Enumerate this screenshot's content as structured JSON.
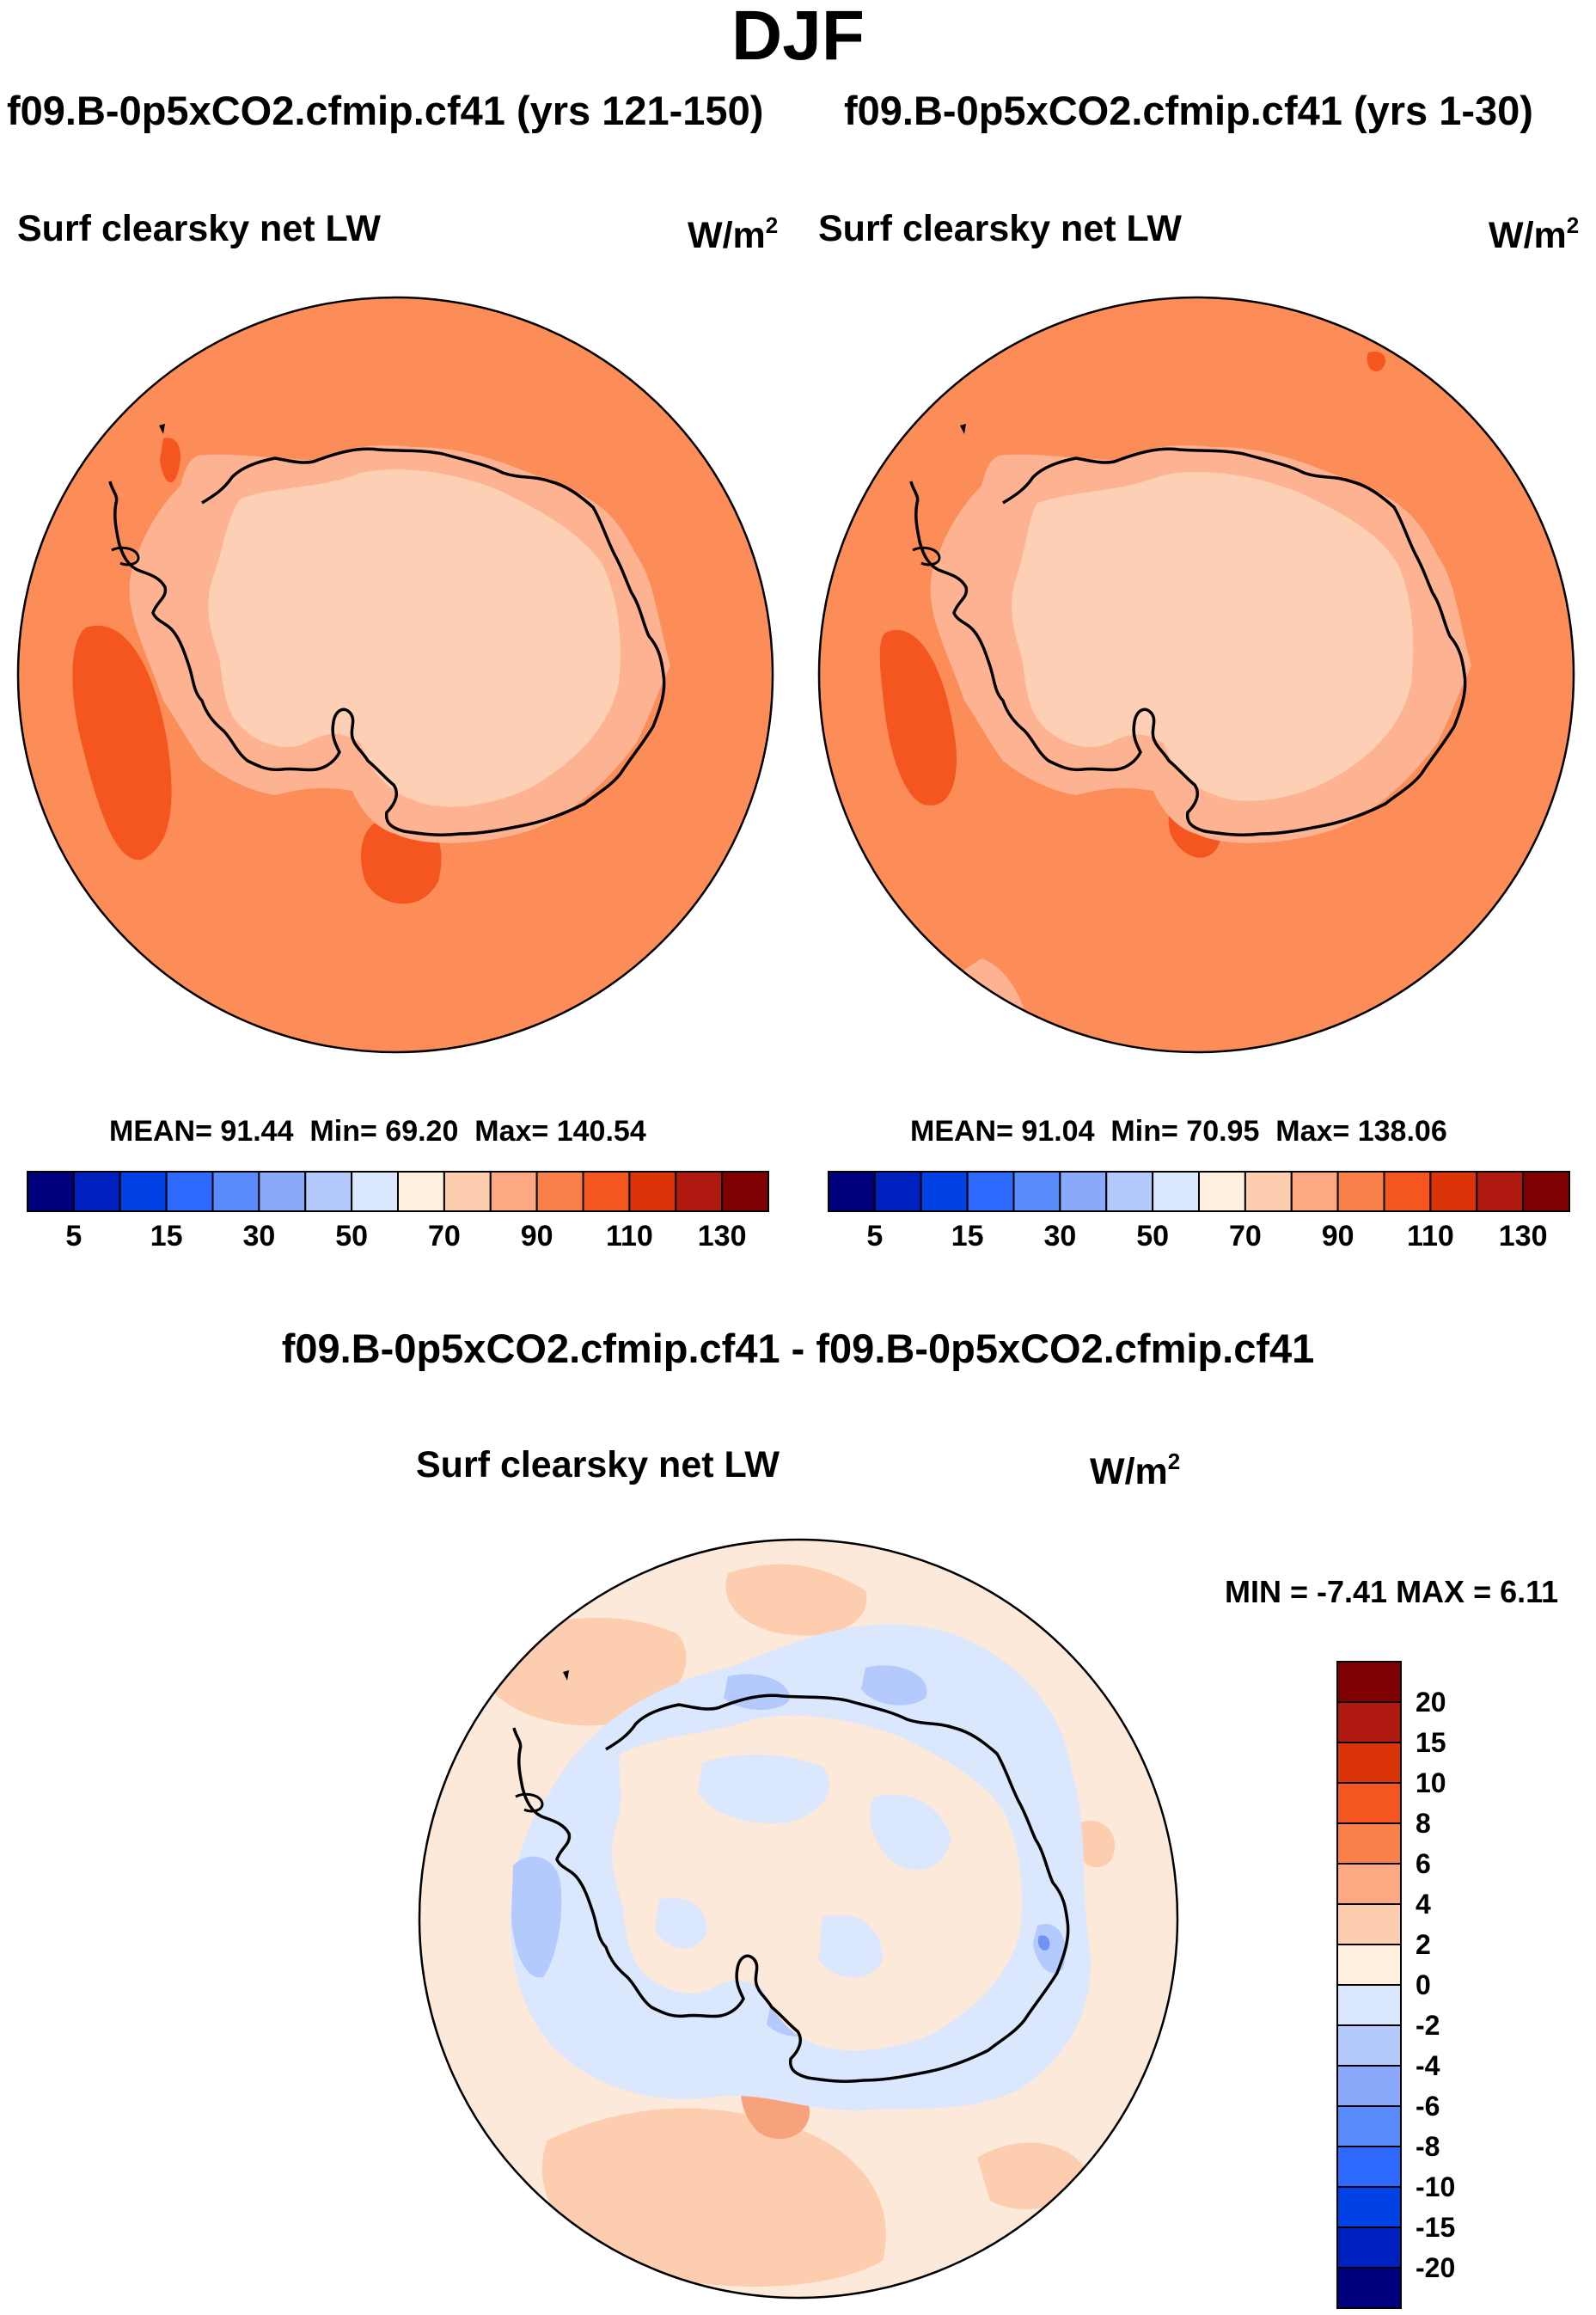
{
  "title": "DJF",
  "units_label": "W/m",
  "units_exponent": "2",
  "panels": [
    {
      "case_title": "f09.B-0p5xCO2.cfmip.cf41 (yrs 121-150)",
      "field_label": "Surf clearsky net LW",
      "mean_label": "MEAN=",
      "mean_value": "91.44",
      "min_label": "Min=",
      "min_value": "69.20",
      "max_label": "Max=",
      "max_value": "140.54",
      "ocean_color": "#fc8d59"
    },
    {
      "case_title": "f09.B-0p5xCO2.cfmip.cf41 (yrs 1-30)",
      "field_label": "Surf clearsky net LW",
      "mean_label": "MEAN=",
      "mean_value": "91.04",
      "min_label": "Min=",
      "min_value": "70.95",
      "max_label": "Max=",
      "max_value": "138.06",
      "ocean_color": "#fc8d59"
    }
  ],
  "diff_panel": {
    "title": "f09.B-0p5xCO2.cfmip.cf41 - f09.B-0p5xCO2.cfmip.cf41",
    "field_label": "Surf clearsky net LW",
    "minmax_label": "MIN =  -7.41 MAX =   6.11"
  },
  "colorbar_top": {
    "tick_labels": [
      "5",
      "15",
      "30",
      "50",
      "70",
      "90",
      "110",
      "130"
    ],
    "colors": [
      "#00007f",
      "#0021bf",
      "#0042e6",
      "#2e69ff",
      "#5a8bfa",
      "#8aa9fa",
      "#b4cafc",
      "#dbe7fd",
      "#fff0e0",
      "#fdcdb0",
      "#fca883",
      "#fa8049",
      "#f5561f",
      "#db3409",
      "#b0190f",
      "#7f0000"
    ]
  },
  "colorbar_diff": {
    "tick_labels": [
      "20",
      "15",
      "10",
      "8",
      "6",
      "4",
      "2",
      "0",
      "-2",
      "-4",
      "-6",
      "-8",
      "-10",
      "-15",
      "-20"
    ],
    "colors": [
      "#7f0000",
      "#b0190f",
      "#db3409",
      "#f5561f",
      "#fa8049",
      "#fca883",
      "#fdcdb0",
      "#fff0e0",
      "#dbe7fd",
      "#b4cafc",
      "#8aa9fa",
      "#5a8bfa",
      "#2e69ff",
      "#0042e6",
      "#0021bf",
      "#00007f"
    ]
  },
  "map_colors": {
    "land_interior": "#fdd0b5",
    "land_margin": "#fdb391",
    "ocean_warm": "#f5561f",
    "ocean_hot": "#db3409",
    "diff_neutral": "#fde9da",
    "diff_light_pos": "#fdcdb0",
    "diff_mid_pos": "#f8a27d",
    "diff_light_neg": "#dbe7fd",
    "diff_mid_neg": "#b4cafc",
    "diff_dark_neg": "#6f93f5",
    "coast": "#000000"
  }
}
